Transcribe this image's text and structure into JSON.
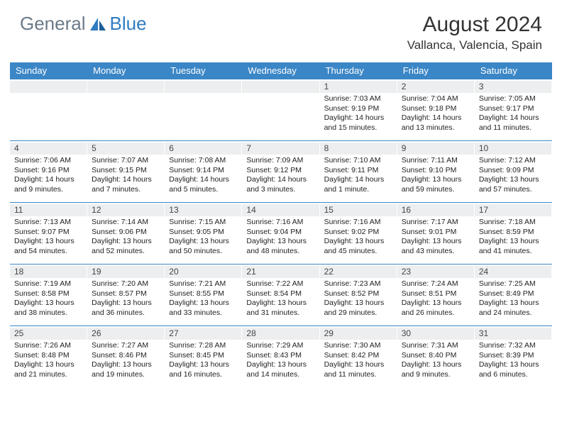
{
  "brand": {
    "word1": "General",
    "word2": "Blue"
  },
  "title": "August 2024",
  "subtitle": "Vallanca, Valencia, Spain",
  "colors": {
    "header_bar": "#3b86c6",
    "band": "#eceeef",
    "logo_gray": "#6b7a88",
    "logo_blue": "#2f7cc0",
    "text": "#222222"
  },
  "weekdays": [
    "Sunday",
    "Monday",
    "Tuesday",
    "Wednesday",
    "Thursday",
    "Friday",
    "Saturday"
  ],
  "weeks": [
    [
      {
        "n": ""
      },
      {
        "n": ""
      },
      {
        "n": ""
      },
      {
        "n": ""
      },
      {
        "n": "1",
        "sr": "7:03 AM",
        "ss": "9:19 PM",
        "dl": "14 hours and 15 minutes."
      },
      {
        "n": "2",
        "sr": "7:04 AM",
        "ss": "9:18 PM",
        "dl": "14 hours and 13 minutes."
      },
      {
        "n": "3",
        "sr": "7:05 AM",
        "ss": "9:17 PM",
        "dl": "14 hours and 11 minutes."
      }
    ],
    [
      {
        "n": "4",
        "sr": "7:06 AM",
        "ss": "9:16 PM",
        "dl": "14 hours and 9 minutes."
      },
      {
        "n": "5",
        "sr": "7:07 AM",
        "ss": "9:15 PM",
        "dl": "14 hours and 7 minutes."
      },
      {
        "n": "6",
        "sr": "7:08 AM",
        "ss": "9:14 PM",
        "dl": "14 hours and 5 minutes."
      },
      {
        "n": "7",
        "sr": "7:09 AM",
        "ss": "9:12 PM",
        "dl": "14 hours and 3 minutes."
      },
      {
        "n": "8",
        "sr": "7:10 AM",
        "ss": "9:11 PM",
        "dl": "14 hours and 1 minute."
      },
      {
        "n": "9",
        "sr": "7:11 AM",
        "ss": "9:10 PM",
        "dl": "13 hours and 59 minutes."
      },
      {
        "n": "10",
        "sr": "7:12 AM",
        "ss": "9:09 PM",
        "dl": "13 hours and 57 minutes."
      }
    ],
    [
      {
        "n": "11",
        "sr": "7:13 AM",
        "ss": "9:07 PM",
        "dl": "13 hours and 54 minutes."
      },
      {
        "n": "12",
        "sr": "7:14 AM",
        "ss": "9:06 PM",
        "dl": "13 hours and 52 minutes."
      },
      {
        "n": "13",
        "sr": "7:15 AM",
        "ss": "9:05 PM",
        "dl": "13 hours and 50 minutes."
      },
      {
        "n": "14",
        "sr": "7:16 AM",
        "ss": "9:04 PM",
        "dl": "13 hours and 48 minutes."
      },
      {
        "n": "15",
        "sr": "7:16 AM",
        "ss": "9:02 PM",
        "dl": "13 hours and 45 minutes."
      },
      {
        "n": "16",
        "sr": "7:17 AM",
        "ss": "9:01 PM",
        "dl": "13 hours and 43 minutes."
      },
      {
        "n": "17",
        "sr": "7:18 AM",
        "ss": "8:59 PM",
        "dl": "13 hours and 41 minutes."
      }
    ],
    [
      {
        "n": "18",
        "sr": "7:19 AM",
        "ss": "8:58 PM",
        "dl": "13 hours and 38 minutes."
      },
      {
        "n": "19",
        "sr": "7:20 AM",
        "ss": "8:57 PM",
        "dl": "13 hours and 36 minutes."
      },
      {
        "n": "20",
        "sr": "7:21 AM",
        "ss": "8:55 PM",
        "dl": "13 hours and 33 minutes."
      },
      {
        "n": "21",
        "sr": "7:22 AM",
        "ss": "8:54 PM",
        "dl": "13 hours and 31 minutes."
      },
      {
        "n": "22",
        "sr": "7:23 AM",
        "ss": "8:52 PM",
        "dl": "13 hours and 29 minutes."
      },
      {
        "n": "23",
        "sr": "7:24 AM",
        "ss": "8:51 PM",
        "dl": "13 hours and 26 minutes."
      },
      {
        "n": "24",
        "sr": "7:25 AM",
        "ss": "8:49 PM",
        "dl": "13 hours and 24 minutes."
      }
    ],
    [
      {
        "n": "25",
        "sr": "7:26 AM",
        "ss": "8:48 PM",
        "dl": "13 hours and 21 minutes."
      },
      {
        "n": "26",
        "sr": "7:27 AM",
        "ss": "8:46 PM",
        "dl": "13 hours and 19 minutes."
      },
      {
        "n": "27",
        "sr": "7:28 AM",
        "ss": "8:45 PM",
        "dl": "13 hours and 16 minutes."
      },
      {
        "n": "28",
        "sr": "7:29 AM",
        "ss": "8:43 PM",
        "dl": "13 hours and 14 minutes."
      },
      {
        "n": "29",
        "sr": "7:30 AM",
        "ss": "8:42 PM",
        "dl": "13 hours and 11 minutes."
      },
      {
        "n": "30",
        "sr": "7:31 AM",
        "ss": "8:40 PM",
        "dl": "13 hours and 9 minutes."
      },
      {
        "n": "31",
        "sr": "7:32 AM",
        "ss": "8:39 PM",
        "dl": "13 hours and 6 minutes."
      }
    ]
  ],
  "labels": {
    "sunrise": "Sunrise: ",
    "sunset": "Sunset: ",
    "daylight": "Daylight: "
  }
}
